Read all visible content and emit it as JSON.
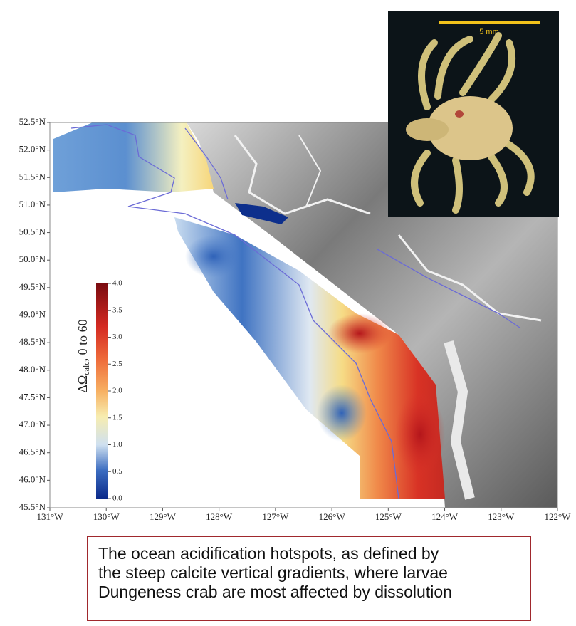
{
  "map": {
    "lat_ticks": [
      {
        "value": 52.5,
        "label": "52.5°N"
      },
      {
        "value": 52.0,
        "label": "52.0°N"
      },
      {
        "value": 51.5,
        "label": "51.5°N"
      },
      {
        "value": 51.0,
        "label": "51.0°N"
      },
      {
        "value": 50.5,
        "label": "50.5°N"
      },
      {
        "value": 50.0,
        "label": "50.0°N"
      },
      {
        "value": 49.5,
        "label": "49.5°N"
      },
      {
        "value": 49.0,
        "label": "49.0°N"
      },
      {
        "value": 48.5,
        "label": "48.5°N"
      },
      {
        "value": 48.0,
        "label": "48.0°N"
      },
      {
        "value": 47.5,
        "label": "47.5°N"
      },
      {
        "value": 47.0,
        "label": "47.0°N"
      },
      {
        "value": 46.5,
        "label": "46.5°N"
      },
      {
        "value": 46.0,
        "label": "46.0°N"
      },
      {
        "value": 45.5,
        "label": "45.5°N"
      }
    ],
    "lon_ticks": [
      {
        "value": -131,
        "label": "131°W"
      },
      {
        "value": -130,
        "label": "130°W"
      },
      {
        "value": -129,
        "label": "129°W"
      },
      {
        "value": -128,
        "label": "128°W"
      },
      {
        "value": -127,
        "label": "127°W"
      },
      {
        "value": -126,
        "label": "126°W"
      },
      {
        "value": -125,
        "label": "125°W"
      },
      {
        "value": -124,
        "label": "124°W"
      },
      {
        "value": -123,
        "label": "123°W"
      },
      {
        "value": -122,
        "label": "122°W"
      }
    ],
    "colorbar": {
      "label": [
        "ΔΩ",
        "calc",
        ", 0 to 60"
      ],
      "ticks": [
        {
          "value": 0,
          "label": "0.0"
        },
        {
          "value": 0.5,
          "label": "0.5"
        },
        {
          "value": 1,
          "label": "1.0"
        },
        {
          "value": 1.5,
          "label": "1.5"
        },
        {
          "value": 2,
          "label": "2.0"
        },
        {
          "value": 2.5,
          "label": "2.5"
        },
        {
          "value": 3,
          "label": "3.0"
        },
        {
          "value": 3.5,
          "label": "3.5"
        },
        {
          "value": 4,
          "label": "4.0"
        }
      ],
      "range": [
        0,
        4
      ]
    },
    "inset": {
      "scale_label": "5 mm"
    },
    "caption": [
      "The ocean acidification hotspots, as defined by",
      "the steep calcite vertical gradients, where larvae",
      "Dungeness crab are most affected by dissolution"
    ]
  }
}
